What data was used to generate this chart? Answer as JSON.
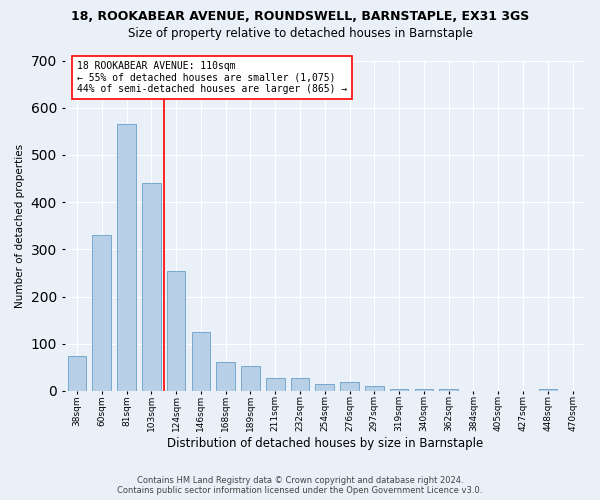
{
  "title1": "18, ROOKABEAR AVENUE, ROUNDSWELL, BARNSTAPLE, EX31 3GS",
  "title2": "Size of property relative to detached houses in Barnstaple",
  "xlabel": "Distribution of detached houses by size in Barnstaple",
  "ylabel": "Number of detached properties",
  "categories": [
    "38sqm",
    "60sqm",
    "81sqm",
    "103sqm",
    "124sqm",
    "146sqm",
    "168sqm",
    "189sqm",
    "211sqm",
    "232sqm",
    "254sqm",
    "276sqm",
    "297sqm",
    "319sqm",
    "340sqm",
    "362sqm",
    "384sqm",
    "405sqm",
    "427sqm",
    "448sqm",
    "470sqm"
  ],
  "values": [
    73,
    330,
    565,
    440,
    255,
    125,
    62,
    52,
    28,
    28,
    15,
    18,
    11,
    5,
    5,
    5,
    0,
    0,
    0,
    5,
    0
  ],
  "bar_color": "#b8cfe8",
  "bar_edge_color": "#6a9fc8",
  "vline_color": "red",
  "vline_x_index": 3,
  "annotation_line1": "18 ROOKABEAR AVENUE: 110sqm",
  "annotation_line2": "← 55% of detached houses are smaller (1,075)",
  "annotation_line3": "44% of semi-detached houses are larger (865) →",
  "annotation_box_color": "white",
  "annotation_box_edge": "red",
  "ylim": [
    0,
    700
  ],
  "yticks": [
    0,
    100,
    200,
    300,
    400,
    500,
    600,
    700
  ],
  "footer1": "Contains HM Land Registry data © Crown copyright and database right 2024.",
  "footer2": "Contains public sector information licensed under the Open Government Licence v3.0.",
  "background_color": "#eaf0f8",
  "grid_color": "white",
  "title1_fontsize": 9,
  "title2_fontsize": 8.5,
  "ylabel_fontsize": 7.5,
  "xlabel_fontsize": 8.5,
  "tick_fontsize": 6.5,
  "annot_fontsize": 7,
  "footer_fontsize": 6
}
